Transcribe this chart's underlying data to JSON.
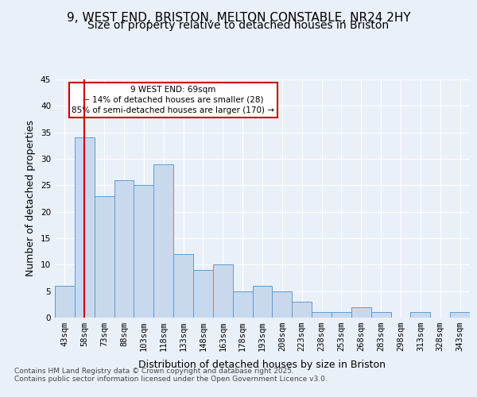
{
  "title_line1": "9, WEST END, BRISTON, MELTON CONSTABLE, NR24 2HY",
  "title_line2": "Size of property relative to detached houses in Briston",
  "xlabel": "Distribution of detached houses by size in Briston",
  "ylabel": "Number of detached properties",
  "categories": [
    "43sqm",
    "58sqm",
    "73sqm",
    "88sqm",
    "103sqm",
    "118sqm",
    "133sqm",
    "148sqm",
    "163sqm",
    "178sqm",
    "193sqm",
    "208sqm",
    "223sqm",
    "238sqm",
    "253sqm",
    "268sqm",
    "283sqm",
    "298sqm",
    "313sqm",
    "328sqm",
    "343sqm"
  ],
  "values": [
    6,
    34,
    23,
    26,
    25,
    29,
    12,
    9,
    10,
    5,
    6,
    5,
    3,
    1,
    1,
    2,
    1,
    0,
    1,
    0,
    1
  ],
  "bar_color": "#c9d9ed",
  "bar_edge_color": "#5b9bd5",
  "vline_index": 1,
  "vline_color": "#cc0000",
  "annotation_text": "9 WEST END: 69sqm\n← 14% of detached houses are smaller (28)\n85% of semi-detached houses are larger (170) →",
  "annotation_box_facecolor": "#ffffff",
  "annotation_box_edgecolor": "#cc0000",
  "ylim": [
    0,
    45
  ],
  "yticks": [
    0,
    5,
    10,
    15,
    20,
    25,
    30,
    35,
    40,
    45
  ],
  "background_color": "#eaf0f8",
  "footer_line1": "Contains HM Land Registry data © Crown copyright and database right 2025.",
  "footer_line2": "Contains public sector information licensed under the Open Government Licence v3.0.",
  "title_fontsize": 11,
  "subtitle_fontsize": 10,
  "axis_label_fontsize": 9,
  "tick_fontsize": 7.5,
  "annotation_fontsize": 7.5,
  "footer_fontsize": 6.5
}
